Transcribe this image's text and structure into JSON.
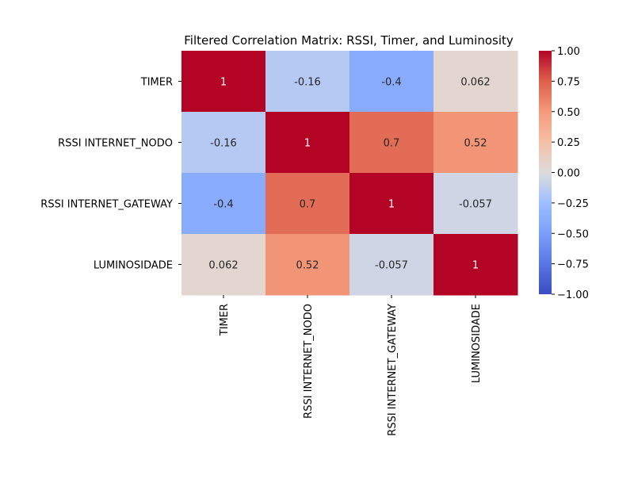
{
  "chart_data": {
    "type": "heatmap",
    "title": "Filtered Correlation Matrix: RSSI, Timer, and Luminosity",
    "row_labels": [
      "TIMER",
      "RSSI INTERNET_NODO",
      "RSSI INTERNET_GATEWAY",
      "LUMINOSIDADE"
    ],
    "col_labels": [
      "TIMER",
      "RSSI INTERNET_NODO",
      "RSSI INTERNET_GATEWAY",
      "LUMINOSIDADE"
    ],
    "values": [
      [
        1,
        -0.16,
        -0.4,
        0.062
      ],
      [
        -0.16,
        1,
        0.7,
        0.52
      ],
      [
        -0.4,
        0.7,
        1,
        -0.057
      ],
      [
        0.062,
        0.52,
        -0.057,
        1
      ]
    ],
    "annotations": [
      [
        "1",
        "-0.16",
        "-0.4",
        "0.062"
      ],
      [
        "-0.16",
        "1",
        "0.7",
        "0.52"
      ],
      [
        "-0.4",
        "0.7",
        "1",
        "-0.057"
      ],
      [
        "0.062",
        "0.52",
        "-0.057",
        "1"
      ]
    ],
    "colormap": "coolwarm",
    "vmin": -1,
    "vmax": 1,
    "colorbar_ticks": [
      "1.00",
      "0.75",
      "0.50",
      "0.25",
      "0.00",
      "−0.25",
      "−0.50",
      "−0.75",
      "−1.00"
    ],
    "colorbar_tick_values": [
      1,
      0.75,
      0.5,
      0.25,
      0,
      -0.25,
      -0.5,
      -0.75,
      -1
    ]
  }
}
